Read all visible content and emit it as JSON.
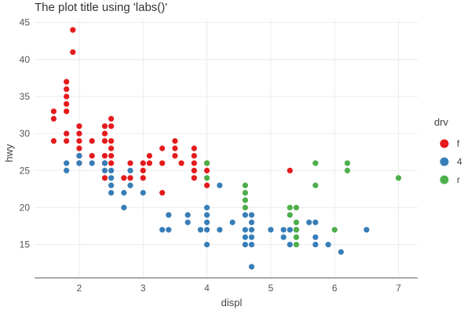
{
  "chart_data": {
    "type": "scatter",
    "title": "The plot title using 'labs()'",
    "xlabel": "displ",
    "ylabel": "hwy",
    "xlim": [
      1.3,
      7.3
    ],
    "ylim": [
      10.5,
      45.5
    ],
    "xticks": [
      2,
      3,
      4,
      5,
      6,
      7
    ],
    "yticks": [
      15,
      20,
      25,
      30,
      35,
      40,
      45
    ],
    "grid": true,
    "legend": {
      "title": "drv",
      "placement": "right"
    },
    "series": [
      {
        "name": "f",
        "color": "#e41a1c",
        "points": [
          [
            1.6,
            33
          ],
          [
            1.6,
            32
          ],
          [
            1.6,
            29
          ],
          [
            1.8,
            37
          ],
          [
            1.8,
            36
          ],
          [
            1.8,
            35
          ],
          [
            1.8,
            34
          ],
          [
            1.8,
            33
          ],
          [
            1.8,
            30
          ],
          [
            1.8,
            29
          ],
          [
            1.9,
            44
          ],
          [
            1.9,
            41
          ],
          [
            2.0,
            31
          ],
          [
            2.0,
            30
          ],
          [
            2.0,
            29
          ],
          [
            2.0,
            28
          ],
          [
            2.0,
            27
          ],
          [
            2.0,
            26
          ],
          [
            2.2,
            29
          ],
          [
            2.2,
            27
          ],
          [
            2.4,
            31
          ],
          [
            2.4,
            30
          ],
          [
            2.4,
            29
          ],
          [
            2.4,
            27
          ],
          [
            2.4,
            26
          ],
          [
            2.4,
            24
          ],
          [
            2.5,
            32
          ],
          [
            2.5,
            31
          ],
          [
            2.5,
            29
          ],
          [
            2.5,
            28
          ],
          [
            2.5,
            27
          ],
          [
            2.5,
            26
          ],
          [
            2.7,
            24
          ],
          [
            2.8,
            26
          ],
          [
            2.8,
            24
          ],
          [
            3.0,
            26
          ],
          [
            3.0,
            25
          ],
          [
            3.0,
            24
          ],
          [
            3.1,
            27
          ],
          [
            3.1,
            26
          ],
          [
            3.3,
            28
          ],
          [
            3.3,
            26
          ],
          [
            3.3,
            22
          ],
          [
            3.5,
            29
          ],
          [
            3.5,
            28
          ],
          [
            3.5,
            27
          ],
          [
            3.6,
            26
          ],
          [
            3.8,
            28
          ],
          [
            3.8,
            27
          ],
          [
            3.8,
            26
          ],
          [
            3.8,
            25
          ],
          [
            3.8,
            24
          ],
          [
            4.0,
            26
          ],
          [
            4.0,
            25
          ],
          [
            4.0,
            23
          ],
          [
            5.3,
            25
          ]
        ]
      },
      {
        "name": "4",
        "color": "#377eb8",
        "points": [
          [
            1.8,
            26
          ],
          [
            1.8,
            25
          ],
          [
            2.0,
            27
          ],
          [
            2.0,
            26
          ],
          [
            2.2,
            26
          ],
          [
            2.4,
            26
          ],
          [
            2.4,
            25
          ],
          [
            2.5,
            25
          ],
          [
            2.5,
            24
          ],
          [
            2.5,
            23
          ],
          [
            2.5,
            22
          ],
          [
            2.7,
            22
          ],
          [
            2.7,
            20
          ],
          [
            2.8,
            25
          ],
          [
            2.8,
            23
          ],
          [
            3.0,
            22
          ],
          [
            3.3,
            17
          ],
          [
            3.4,
            19
          ],
          [
            3.4,
            17
          ],
          [
            3.7,
            19
          ],
          [
            3.7,
            18
          ],
          [
            3.9,
            17
          ],
          [
            4.0,
            20
          ],
          [
            4.0,
            19
          ],
          [
            4.0,
            18
          ],
          [
            4.0,
            17
          ],
          [
            4.0,
            15
          ],
          [
            4.2,
            23
          ],
          [
            4.2,
            17
          ],
          [
            4.4,
            18
          ],
          [
            4.6,
            19
          ],
          [
            4.6,
            17
          ],
          [
            4.6,
            16
          ],
          [
            4.6,
            15
          ],
          [
            4.7,
            19
          ],
          [
            4.7,
            18
          ],
          [
            4.7,
            17
          ],
          [
            4.7,
            16
          ],
          [
            4.7,
            15
          ],
          [
            4.7,
            12
          ],
          [
            5.0,
            17
          ],
          [
            5.2,
            17
          ],
          [
            5.2,
            16
          ],
          [
            5.3,
            17
          ],
          [
            5.3,
            15
          ],
          [
            5.4,
            17
          ],
          [
            5.4,
            16
          ],
          [
            5.6,
            18
          ],
          [
            5.7,
            18
          ],
          [
            5.7,
            16
          ],
          [
            5.7,
            15
          ],
          [
            5.9,
            15
          ],
          [
            6.1,
            14
          ],
          [
            6.5,
            17
          ]
        ]
      },
      {
        "name": "r",
        "color": "#4daf4a",
        "points": [
          [
            4.0,
            26
          ],
          [
            4.0,
            24
          ],
          [
            4.6,
            23
          ],
          [
            4.6,
            22
          ],
          [
            4.6,
            21
          ],
          [
            4.6,
            20
          ],
          [
            5.3,
            20
          ],
          [
            5.3,
            19
          ],
          [
            5.4,
            20
          ],
          [
            5.4,
            18
          ],
          [
            5.4,
            17
          ],
          [
            5.4,
            16
          ],
          [
            5.4,
            15
          ],
          [
            5.7,
            26
          ],
          [
            5.7,
            23
          ],
          [
            6.0,
            17
          ],
          [
            6.2,
            26
          ],
          [
            6.2,
            25
          ],
          [
            7.0,
            24
          ]
        ]
      }
    ]
  }
}
